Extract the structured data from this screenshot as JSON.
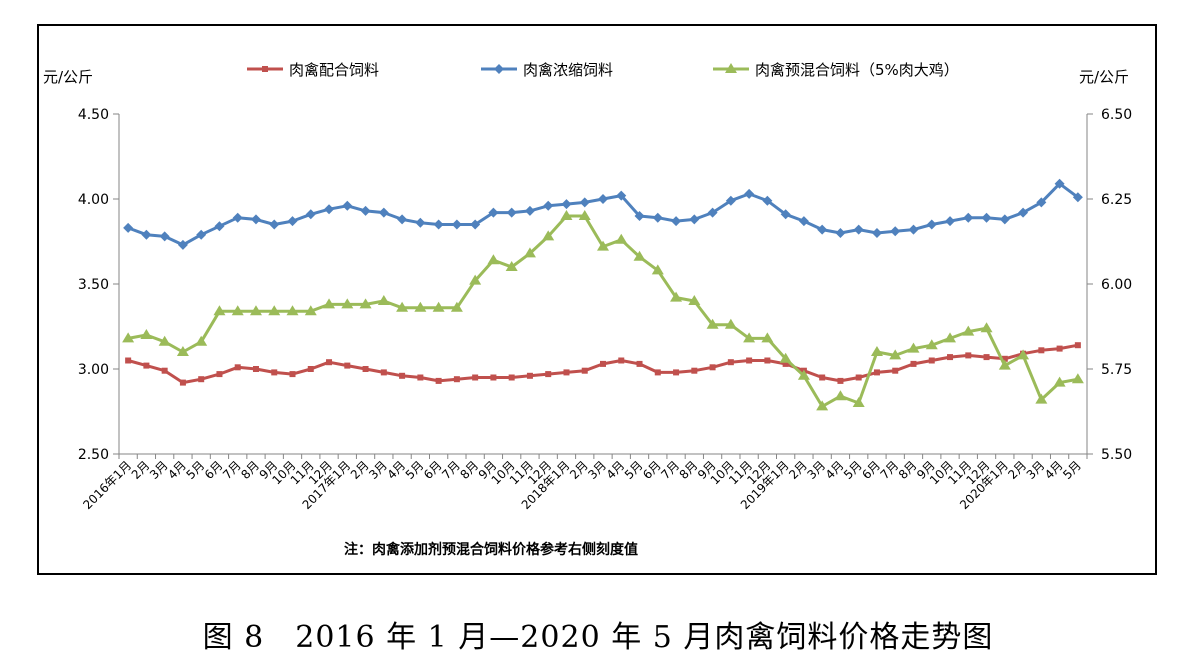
{
  "caption": "图 8　2016 年 1 月—2020 年 5 月肉禽饲料价格走势图",
  "chart_data": {
    "type": "line",
    "left_unit": "元/公斤",
    "right_unit": "元/公斤",
    "note": "注：肉禽添加剂预混合饲料价格参考右侧刻度值",
    "left_ylim": [
      2.5,
      4.5
    ],
    "right_ylim": [
      5.5,
      6.5
    ],
    "left_ticks": [
      "4.50",
      "4.00",
      "3.50",
      "3.00",
      "2.50"
    ],
    "right_ticks": [
      "6.50",
      "6.25",
      "6.00",
      "5.75",
      "5.50"
    ],
    "grid": false,
    "legend_position": "top",
    "x": [
      "2016年1月",
      "2月",
      "3月",
      "4月",
      "5月",
      "6月",
      "7月",
      "8月",
      "9月",
      "10月",
      "11月",
      "12月",
      "2017年1月",
      "2月",
      "3月",
      "4月",
      "5月",
      "6月",
      "7月",
      "8月",
      "9月",
      "10月",
      "11月",
      "12月",
      "2018年1月",
      "2月",
      "3月",
      "4月",
      "5月",
      "6月",
      "7月",
      "8月",
      "9月",
      "10月",
      "11月",
      "12月",
      "2019年1月",
      "2月",
      "3月",
      "4月",
      "5月",
      "6月",
      "7月",
      "8月",
      "9月",
      "10月",
      "11月",
      "12月",
      "2020年1月",
      "2月",
      "3月",
      "4月",
      "5月"
    ],
    "series": [
      {
        "name": "肉禽配合饲料",
        "axis": "left",
        "color": "#C0504D",
        "marker": "square",
        "values": [
          3.05,
          3.02,
          2.99,
          2.92,
          2.94,
          2.97,
          3.01,
          3.0,
          2.98,
          2.97,
          3.0,
          3.04,
          3.02,
          3.0,
          2.98,
          2.96,
          2.95,
          2.93,
          2.94,
          2.95,
          2.95,
          2.95,
          2.96,
          2.97,
          2.98,
          2.99,
          3.03,
          3.05,
          3.03,
          2.98,
          2.98,
          2.99,
          3.01,
          3.04,
          3.05,
          3.05,
          3.03,
          2.99,
          2.95,
          2.93,
          2.95,
          2.98,
          2.99,
          3.03,
          3.05,
          3.07,
          3.08,
          3.07,
          3.06,
          3.09,
          3.11,
          3.12,
          3.14
        ]
      },
      {
        "name": "肉禽浓缩饲料",
        "axis": "left",
        "color": "#4F81BD",
        "marker": "diamond",
        "values": [
          3.83,
          3.79,
          3.78,
          3.73,
          3.79,
          3.84,
          3.89,
          3.88,
          3.85,
          3.87,
          3.91,
          3.94,
          3.96,
          3.93,
          3.92,
          3.88,
          3.86,
          3.85,
          3.85,
          3.85,
          3.92,
          3.92,
          3.93,
          3.96,
          3.97,
          3.98,
          4.0,
          4.02,
          3.9,
          3.89,
          3.87,
          3.88,
          3.92,
          3.99,
          4.03,
          3.99,
          3.91,
          3.87,
          3.82,
          3.8,
          3.82,
          3.8,
          3.81,
          3.82,
          3.85,
          3.87,
          3.89,
          3.89,
          3.88,
          3.92,
          3.98,
          4.09,
          4.01
        ]
      },
      {
        "name": "肉禽预混合饲料（5%肉大鸡）",
        "axis": "right",
        "color": "#9BBB59",
        "marker": "triangle",
        "values": [
          5.84,
          5.85,
          5.83,
          5.8,
          5.83,
          5.92,
          5.92,
          5.92,
          5.92,
          5.92,
          5.92,
          5.94,
          5.94,
          5.94,
          5.95,
          5.93,
          5.93,
          5.93,
          5.93,
          6.01,
          6.07,
          6.05,
          6.09,
          6.14,
          6.2,
          6.2,
          6.11,
          6.13,
          6.08,
          6.04,
          5.96,
          5.95,
          5.88,
          5.88,
          5.84,
          5.84,
          5.78,
          5.73,
          5.64,
          5.67,
          5.65,
          5.8,
          5.79,
          5.81,
          5.82,
          5.84,
          5.86,
          5.87,
          5.76,
          5.79,
          5.66,
          5.71,
          5.72
        ]
      }
    ]
  }
}
